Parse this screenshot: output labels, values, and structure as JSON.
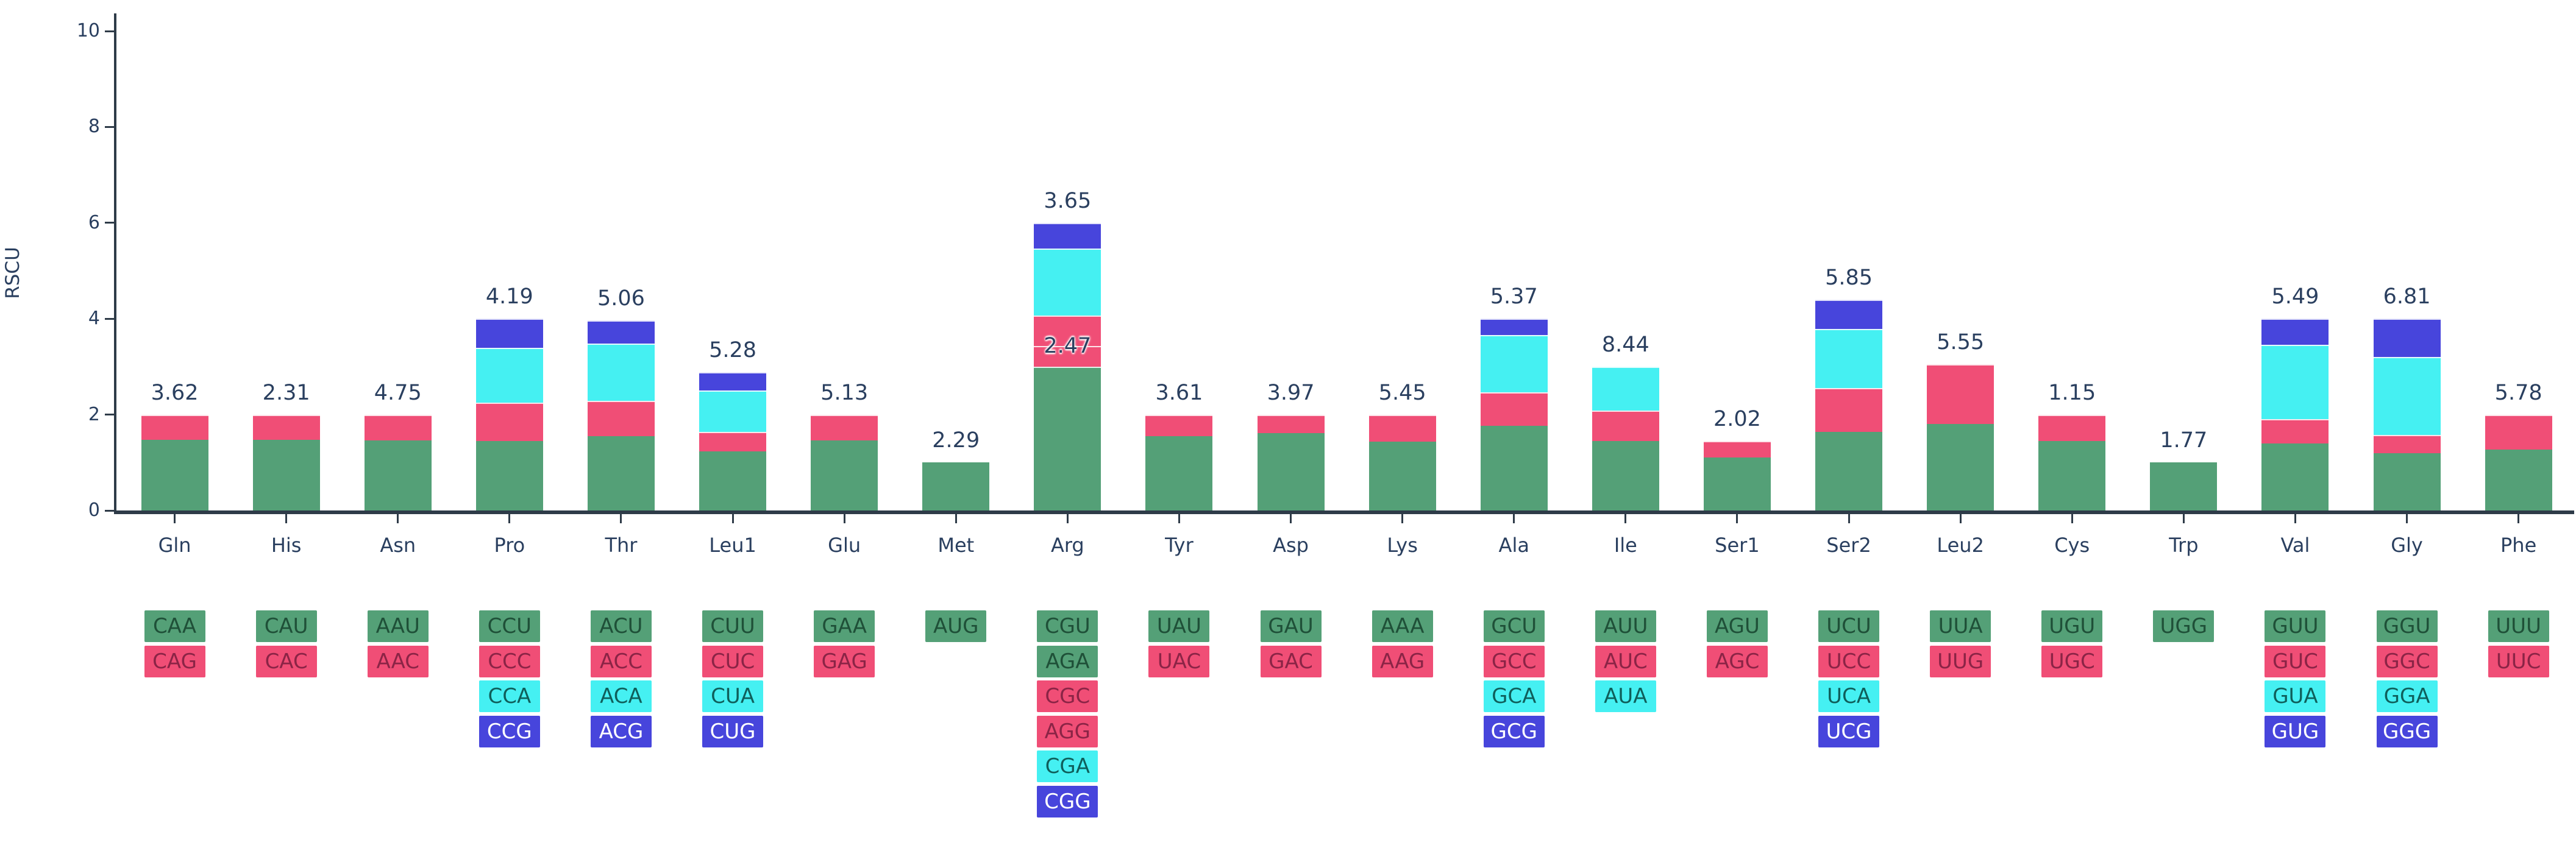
{
  "page": {
    "background": "#ffffff"
  },
  "palette": {
    "c1": {
      "fill": "#54A077",
      "text": "#1F5038"
    },
    "c2": {
      "fill": "#F04E76",
      "text": "#8B2446"
    },
    "c3": {
      "fill": "#45F0F2",
      "text": "#0F5F5B"
    },
    "c4": {
      "fill": "#4745DC",
      "text": "#FFFFFF"
    }
  },
  "axis": {
    "color": "#2e3b48",
    "text_color": "#2a3f5f"
  },
  "chart_data": {
    "type": "bar",
    "stacked": true,
    "title": "",
    "xlabel": "",
    "ylabel": "RSCU",
    "ylim": [
      0,
      10
    ],
    "y_ticks": [
      "0",
      "2",
      "4",
      "6",
      "8",
      "10"
    ],
    "grid": false,
    "legend": "none",
    "categories": [
      "Gln",
      "His",
      "Asn",
      "Pro",
      "Thr",
      "Leu1",
      "Glu",
      "Met",
      "Arg",
      "Tyr",
      "Asp",
      "Lys",
      "Ala",
      "Ile",
      "Ser1",
      "Ser2",
      "Leu2",
      "Cys",
      "Trp",
      "Val",
      "Gly",
      "Phe"
    ],
    "bar_labels": [
      "3.62",
      "2.31",
      "4.75",
      "4.19",
      "5.06",
      "5.28",
      "5.13",
      "2.29",
      "3.65",
      "3.61",
      "3.97",
      "5.45",
      "5.37",
      "8.44",
      "2.02",
      "5.85",
      "5.55",
      "1.15",
      "1.77",
      "5.49",
      "6.81",
      "5.78"
    ],
    "groups": [
      {
        "name": "Gln",
        "label": "3.62",
        "codons": [
          {
            "codon": "CAA",
            "rscu": 1.47,
            "color": "c1"
          },
          {
            "codon": "CAG",
            "rscu": 0.53,
            "color": "c2"
          }
        ]
      },
      {
        "name": "His",
        "label": "2.31",
        "codons": [
          {
            "codon": "CAU",
            "rscu": 1.48,
            "color": "c1"
          },
          {
            "codon": "CAC",
            "rscu": 0.52,
            "color": "c2"
          }
        ]
      },
      {
        "name": "Asn",
        "label": "4.75",
        "codons": [
          {
            "codon": "AAU",
            "rscu": 1.46,
            "color": "c1"
          },
          {
            "codon": "AAC",
            "rscu": 0.54,
            "color": "c2"
          }
        ]
      },
      {
        "name": "Pro",
        "label": "4.19",
        "codons": [
          {
            "codon": "CCU",
            "rscu": 1.45,
            "color": "c1"
          },
          {
            "codon": "CCC",
            "rscu": 0.8,
            "color": "c2"
          },
          {
            "codon": "CCA",
            "rscu": 1.14,
            "color": "c3"
          },
          {
            "codon": "CCG",
            "rscu": 0.61,
            "color": "c4"
          }
        ]
      },
      {
        "name": "Thr",
        "label": "5.06",
        "codons": [
          {
            "codon": "ACU",
            "rscu": 1.55,
            "color": "c1"
          },
          {
            "codon": "ACC",
            "rscu": 0.74,
            "color": "c2"
          },
          {
            "codon": "ACA",
            "rscu": 1.19,
            "color": "c3"
          },
          {
            "codon": "ACG",
            "rscu": 0.48,
            "color": "c4"
          }
        ]
      },
      {
        "name": "Leu1",
        "label": "5.28",
        "codons": [
          {
            "codon": "CUU",
            "rscu": 1.23,
            "color": "c1"
          },
          {
            "codon": "CUC",
            "rscu": 0.41,
            "color": "c2"
          },
          {
            "codon": "CUA",
            "rscu": 0.86,
            "color": "c3"
          },
          {
            "codon": "CUG",
            "rscu": 0.38,
            "color": "c4"
          }
        ]
      },
      {
        "name": "Glu",
        "label": "5.13",
        "codons": [
          {
            "codon": "GAA",
            "rscu": 1.46,
            "color": "c1"
          },
          {
            "codon": "GAG",
            "rscu": 0.54,
            "color": "c2"
          }
        ]
      },
      {
        "name": "Met",
        "label": "2.29",
        "codons": [
          {
            "codon": "AUG",
            "rscu": 1.0,
            "color": "c1"
          }
        ]
      },
      {
        "name": "Arg",
        "label": "3.65",
        "inner_label": {
          "text": "2.47",
          "at": 3.43
        },
        "codons": [
          {
            "codon": "CGU",
            "rscu": 1.24,
            "color": "c1"
          },
          {
            "codon": "AGA",
            "rscu": 1.76,
            "color": "c1"
          },
          {
            "codon": "CGC",
            "rscu": 0.43,
            "color": "c2"
          },
          {
            "codon": "AGG",
            "rscu": 0.63,
            "color": "c2"
          },
          {
            "codon": "CGA",
            "rscu": 1.4,
            "color": "c3"
          },
          {
            "codon": "CGG",
            "rscu": 0.54,
            "color": "c4"
          }
        ]
      },
      {
        "name": "Tyr",
        "label": "3.61",
        "codons": [
          {
            "codon": "UAU",
            "rscu": 1.55,
            "color": "c1"
          },
          {
            "codon": "UAC",
            "rscu": 0.45,
            "color": "c2"
          }
        ]
      },
      {
        "name": "Asp",
        "label": "3.97",
        "codons": [
          {
            "codon": "GAU",
            "rscu": 1.61,
            "color": "c1"
          },
          {
            "codon": "GAC",
            "rscu": 0.39,
            "color": "c2"
          }
        ]
      },
      {
        "name": "Lys",
        "label": "5.45",
        "codons": [
          {
            "codon": "AAA",
            "rscu": 1.44,
            "color": "c1"
          },
          {
            "codon": "AAG",
            "rscu": 0.56,
            "color": "c2"
          }
        ]
      },
      {
        "name": "Ala",
        "label": "5.37",
        "codons": [
          {
            "codon": "GCU",
            "rscu": 1.76,
            "color": "c1"
          },
          {
            "codon": "GCC",
            "rscu": 0.71,
            "color": "c2"
          },
          {
            "codon": "GCA",
            "rscu": 1.19,
            "color": "c3"
          },
          {
            "codon": "GCG",
            "rscu": 0.34,
            "color": "c4"
          }
        ]
      },
      {
        "name": "Ile",
        "label": "8.44",
        "codons": [
          {
            "codon": "AUU",
            "rscu": 1.45,
            "color": "c1"
          },
          {
            "codon": "AUC",
            "rscu": 0.63,
            "color": "c2"
          },
          {
            "codon": "AUA",
            "rscu": 0.92,
            "color": "c3"
          }
        ]
      },
      {
        "name": "Ser1",
        "label": "2.02",
        "codons": [
          {
            "codon": "AGU",
            "rscu": 1.1,
            "color": "c1"
          },
          {
            "codon": "AGC",
            "rscu": 0.35,
            "color": "c2"
          }
        ]
      },
      {
        "name": "Ser2",
        "label": "5.85",
        "codons": [
          {
            "codon": "UCU",
            "rscu": 1.64,
            "color": "c1"
          },
          {
            "codon": "UCC",
            "rscu": 0.91,
            "color": "c2"
          },
          {
            "codon": "UCA",
            "rscu": 1.24,
            "color": "c3"
          },
          {
            "codon": "UCG",
            "rscu": 0.61,
            "color": "c4"
          }
        ]
      },
      {
        "name": "Leu2",
        "label": "5.55",
        "codons": [
          {
            "codon": "UUA",
            "rscu": 1.81,
            "color": "c1"
          },
          {
            "codon": "UUG",
            "rscu": 1.24,
            "color": "c2"
          }
        ]
      },
      {
        "name": "Cys",
        "label": "1.15",
        "codons": [
          {
            "codon": "UGU",
            "rscu": 1.45,
            "color": "c1"
          },
          {
            "codon": "UGC",
            "rscu": 0.55,
            "color": "c2"
          }
        ]
      },
      {
        "name": "Trp",
        "label": "1.77",
        "codons": [
          {
            "codon": "UGG",
            "rscu": 1.0,
            "color": "c1"
          }
        ]
      },
      {
        "name": "Val",
        "label": "5.49",
        "codons": [
          {
            "codon": "GUU",
            "rscu": 1.4,
            "color": "c1"
          },
          {
            "codon": "GUC",
            "rscu": 0.5,
            "color": "c2"
          },
          {
            "codon": "GUA",
            "rscu": 1.55,
            "color": "c3"
          },
          {
            "codon": "GUG",
            "rscu": 0.55,
            "color": "c4"
          }
        ]
      },
      {
        "name": "Gly",
        "label": "6.81",
        "codons": [
          {
            "codon": "GGU",
            "rscu": 1.2,
            "color": "c1"
          },
          {
            "codon": "GGC",
            "rscu": 0.37,
            "color": "c2"
          },
          {
            "codon": "GGA",
            "rscu": 1.63,
            "color": "c3"
          },
          {
            "codon": "GGG",
            "rscu": 0.8,
            "color": "c4"
          }
        ]
      },
      {
        "name": "Phe",
        "label": "5.78",
        "codons": [
          {
            "codon": "UUU",
            "rscu": 1.27,
            "color": "c1"
          },
          {
            "codon": "UUC",
            "rscu": 0.73,
            "color": "c2"
          }
        ]
      }
    ]
  }
}
